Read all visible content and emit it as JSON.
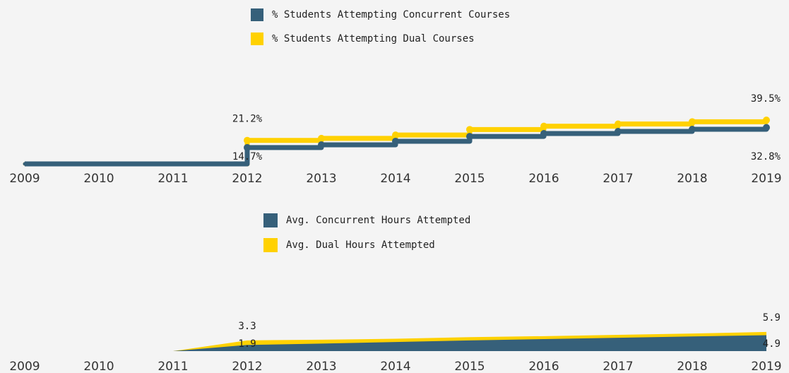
{
  "chart_data": [
    {
      "type": "step",
      "categories": [
        "2009",
        "2010",
        "2011",
        "2012",
        "2013",
        "2014",
        "2015",
        "2016",
        "2017",
        "2018",
        "2019"
      ],
      "series": [
        {
          "name": "% Students Attempting Concurrent Courses",
          "color": "#36607a",
          "values": [
            0,
            0,
            0,
            14.7,
            17.2,
            20.4,
            24.8,
            27.4,
            29.3,
            31.2,
            32.8
          ],
          "value_labels": [
            null,
            null,
            null,
            "14.7%",
            null,
            null,
            null,
            null,
            null,
            null,
            "32.8%"
          ]
        },
        {
          "name": "% Students Attempting Dual Courses",
          "color": "#ffd100",
          "values": [
            0,
            0,
            0,
            21.2,
            23,
            26,
            31,
            34,
            36,
            38,
            39.5
          ],
          "value_labels": [
            null,
            null,
            null,
            "21.2%",
            null,
            null,
            null,
            null,
            null,
            null,
            "39.5%"
          ]
        }
      ]
    },
    {
      "type": "area",
      "categories": [
        "2009",
        "2010",
        "2011",
        "2012",
        "2013",
        "2014",
        "2015",
        "2016",
        "2017",
        "2018",
        "2019"
      ],
      "series": [
        {
          "name": "Avg. Concurrent Hours Attempted",
          "color": "#36607a",
          "values": [
            null,
            null,
            0,
            1.9,
            2.3,
            2.8,
            3.3,
            3.7,
            4.1,
            4.5,
            4.9
          ],
          "value_labels": [
            null,
            null,
            null,
            "1.9",
            null,
            null,
            null,
            null,
            null,
            null,
            "4.9"
          ]
        },
        {
          "name": "Avg. Dual Hours Attempted",
          "color": "#ffd100",
          "values": [
            null,
            null,
            0,
            3.3,
            3.5,
            3.8,
            4.3,
            4.6,
            5.0,
            5.4,
            5.9
          ],
          "value_labels": [
            null,
            null,
            null,
            "3.3",
            null,
            null,
            null,
            null,
            null,
            null,
            "5.9"
          ]
        }
      ]
    }
  ]
}
